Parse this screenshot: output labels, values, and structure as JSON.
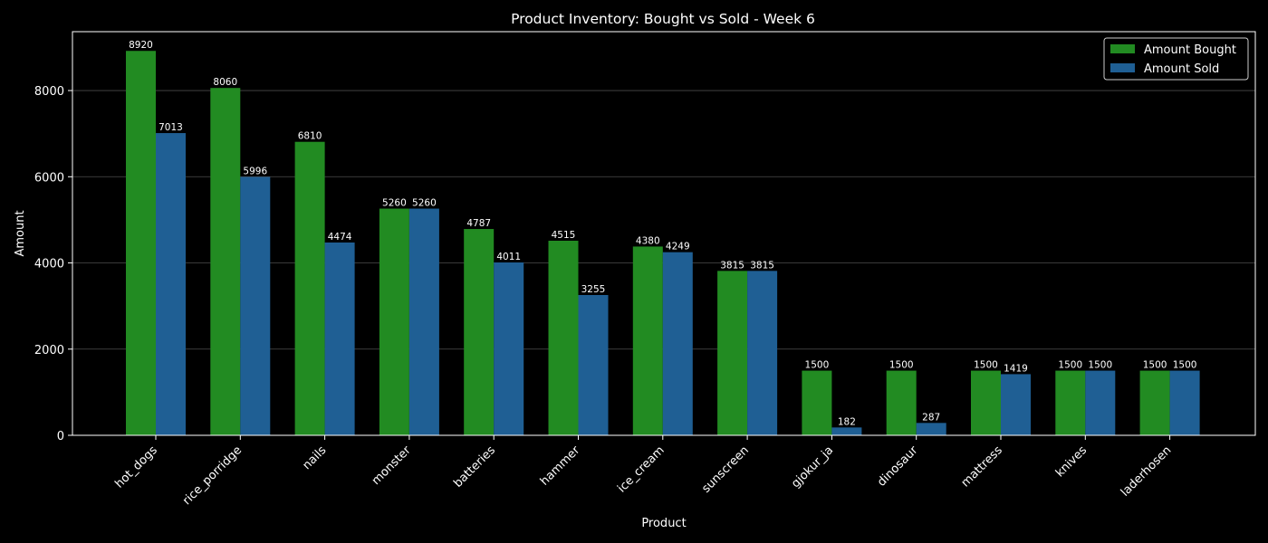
{
  "chart_data": {
    "type": "bar",
    "title": "Product Inventory: Bought vs Sold - Week 6",
    "xlabel": "Product",
    "ylabel": "Amount",
    "ylim": [
      0,
      9366
    ],
    "yticks": [
      0,
      2000,
      4000,
      6000,
      8000
    ],
    "grid": true,
    "legend_position": "top-right",
    "categories": [
      "hot_dogs",
      "rice_porridge",
      "nails",
      "monster",
      "batteries",
      "hammer",
      "ice_cream",
      "sunscreen",
      "gjokur_ja",
      "dinosaur",
      "mattress",
      "knives",
      "laderhosen"
    ],
    "series": [
      {
        "name": "Amount Bought",
        "color": "#228b22",
        "values": [
          8920,
          8060,
          6810,
          5260,
          4787,
          4515,
          4380,
          3815,
          1500,
          1500,
          1500,
          1500,
          1500
        ]
      },
      {
        "name": "Amount Sold",
        "color": "#1f5f94",
        "values": [
          7013,
          5996,
          4474,
          5260,
          4011,
          3255,
          4249,
          3815,
          182,
          287,
          1419,
          1500,
          1500
        ]
      }
    ]
  }
}
